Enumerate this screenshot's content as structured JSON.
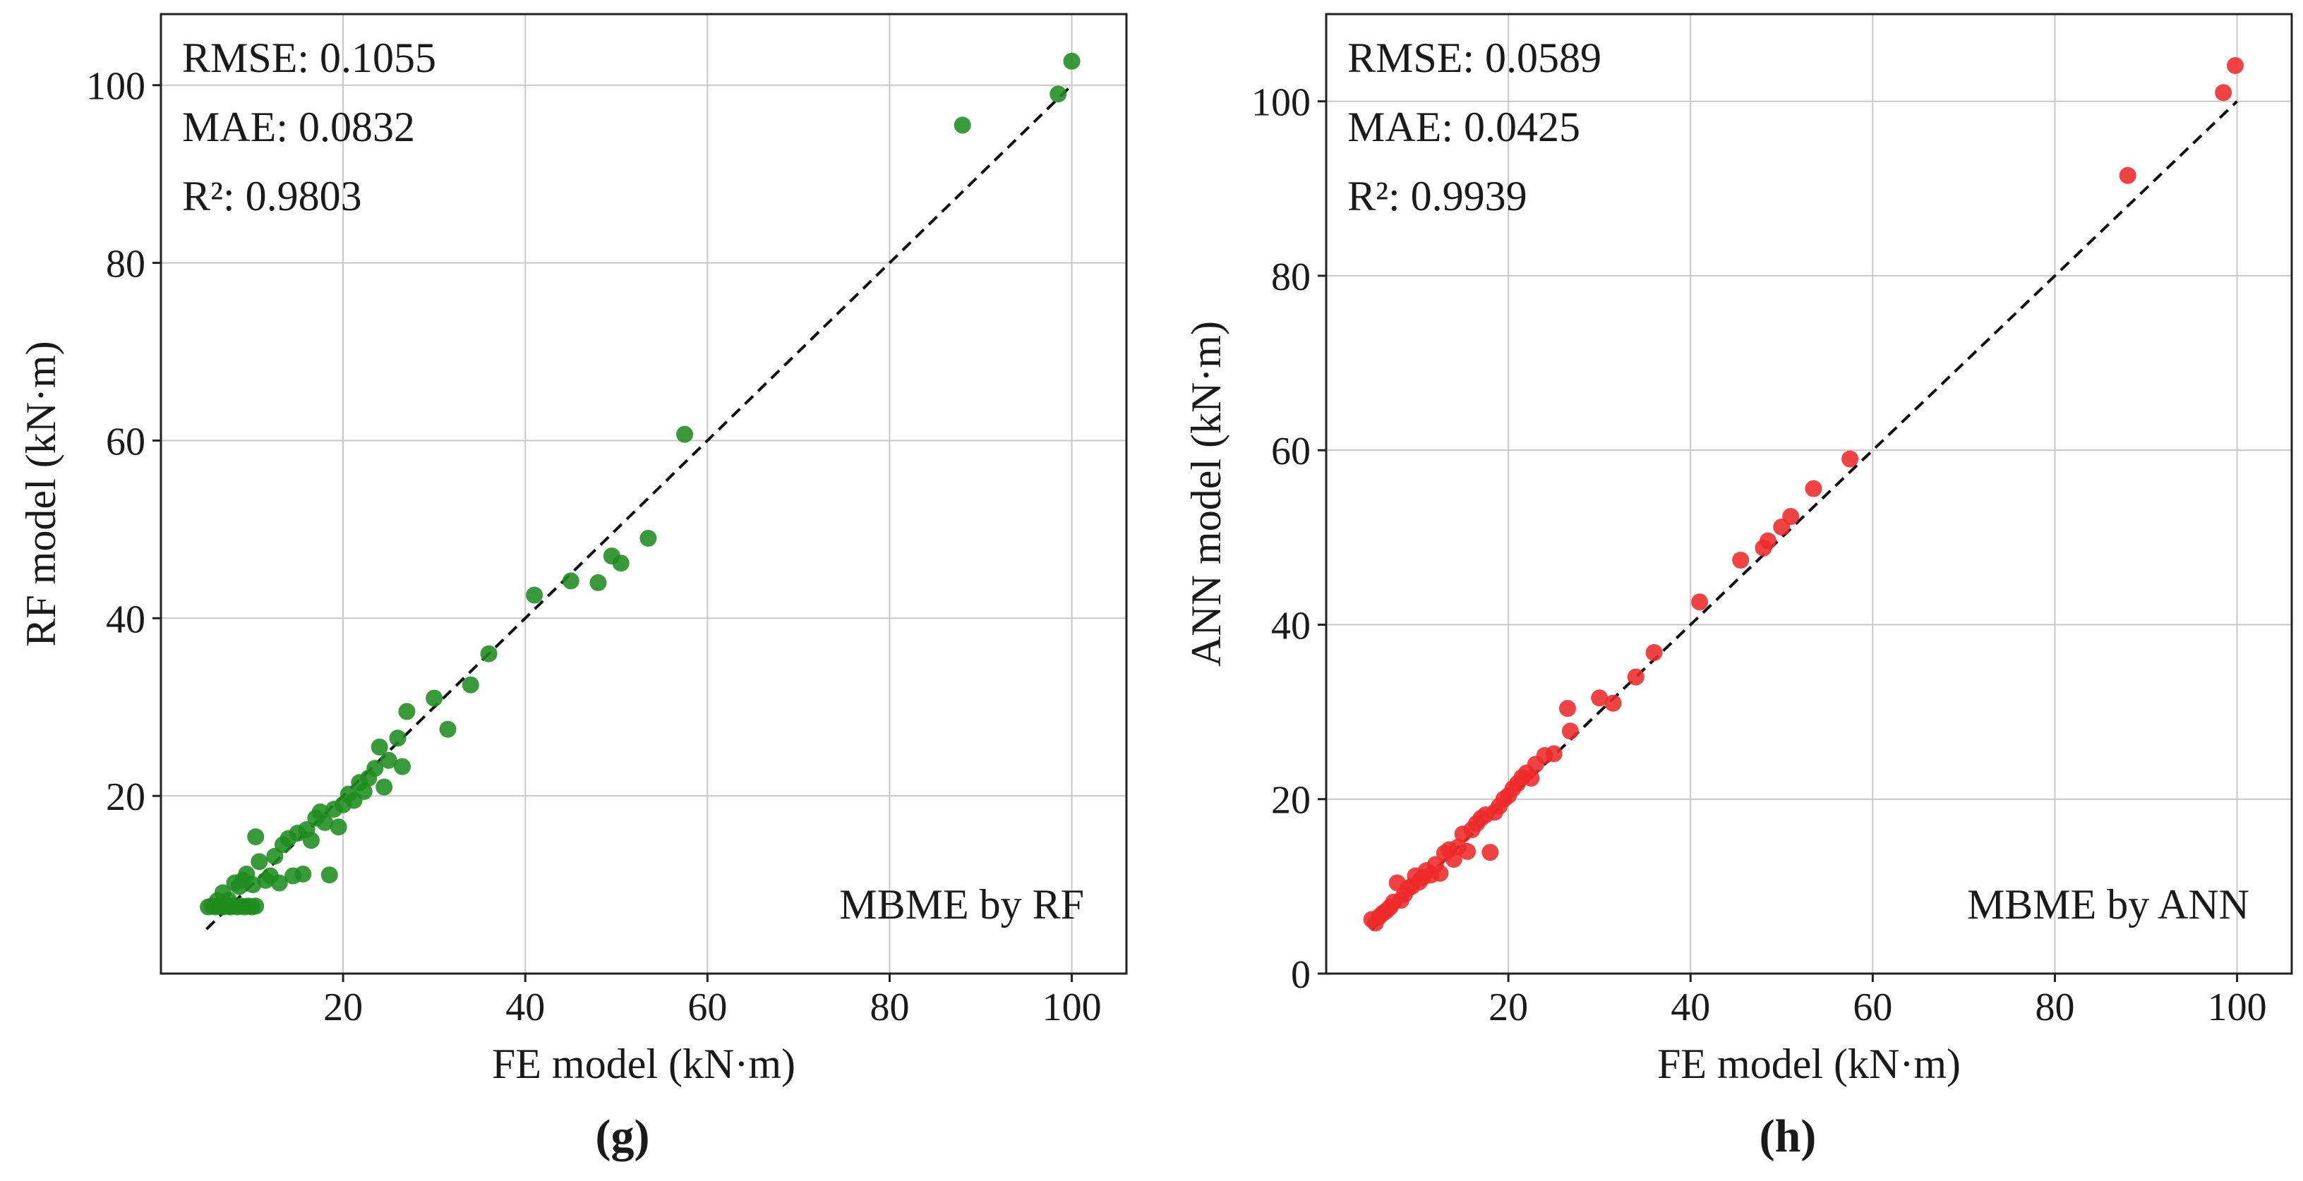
{
  "chart_data": [
    {
      "type": "scatter",
      "panel_label": "(g)",
      "xlabel": "FE model (kN·m)",
      "ylabel": "RF model (kN·m)",
      "annotation": "MBME by RF",
      "stats": [
        "RMSE: 0.1055",
        "MAE: 0.0832",
        "R²: 0.9803"
      ],
      "xlim": [
        0,
        106
      ],
      "ylim": [
        0,
        108
      ],
      "xticks": [
        20,
        40,
        60,
        80,
        100
      ],
      "yticks": [
        20,
        40,
        60,
        80,
        100
      ],
      "color": "#1e8c1e",
      "reference_line": [
        [
          5,
          5
        ],
        [
          100,
          100
        ]
      ],
      "points": [
        [
          5.2,
          7.5
        ],
        [
          5.6,
          7.6
        ],
        [
          6.0,
          7.5
        ],
        [
          6.4,
          7.6
        ],
        [
          6.8,
          7.5
        ],
        [
          7.2,
          7.6
        ],
        [
          7.6,
          7.5
        ],
        [
          8.0,
          7.6
        ],
        [
          8.4,
          7.5
        ],
        [
          8.8,
          7.6
        ],
        [
          9.2,
          7.5
        ],
        [
          9.6,
          7.6
        ],
        [
          10.0,
          7.5
        ],
        [
          10.4,
          7.6
        ],
        [
          6.2,
          8.2
        ],
        [
          6.8,
          9.1
        ],
        [
          7.4,
          8.3
        ],
        [
          8.1,
          10.2
        ],
        [
          8.6,
          9.8
        ],
        [
          9.0,
          10.5
        ],
        [
          9.4,
          11.2
        ],
        [
          10.1,
          10.0
        ],
        [
          10.4,
          15.4
        ],
        [
          10.8,
          12.6
        ],
        [
          11.5,
          10.5
        ],
        [
          12.0,
          11.0
        ],
        [
          12.5,
          13.2
        ],
        [
          13.0,
          10.2
        ],
        [
          13.4,
          14.5
        ],
        [
          14.0,
          15.2
        ],
        [
          14.5,
          11.0
        ],
        [
          15.0,
          15.8
        ],
        [
          15.6,
          11.2
        ],
        [
          16.0,
          16.2
        ],
        [
          16.5,
          15.0
        ],
        [
          17.0,
          17.5
        ],
        [
          17.5,
          18.2
        ],
        [
          18.0,
          17.0
        ],
        [
          18.5,
          11.1
        ],
        [
          19.0,
          18.5
        ],
        [
          19.5,
          16.5
        ],
        [
          20.0,
          19.0
        ],
        [
          20.6,
          20.2
        ],
        [
          21.2,
          19.5
        ],
        [
          21.8,
          21.5
        ],
        [
          22.3,
          20.5
        ],
        [
          22.8,
          22.0
        ],
        [
          23.5,
          23.1
        ],
        [
          24.0,
          25.5
        ],
        [
          24.5,
          21.0
        ],
        [
          25.0,
          24.0
        ],
        [
          26.0,
          26.5
        ],
        [
          26.5,
          23.3
        ],
        [
          27.0,
          29.5
        ],
        [
          30.0,
          31.0
        ],
        [
          31.5,
          27.5
        ],
        [
          34.0,
          32.5
        ],
        [
          36.0,
          36.0
        ],
        [
          41.0,
          42.6
        ],
        [
          45.0,
          44.2
        ],
        [
          48.0,
          44.0
        ],
        [
          49.5,
          47.0
        ],
        [
          50.5,
          46.2
        ],
        [
          53.5,
          49.0
        ],
        [
          57.5,
          60.7
        ],
        [
          88.0,
          95.5
        ],
        [
          98.5,
          99.0
        ],
        [
          100.0,
          102.7
        ]
      ]
    },
    {
      "type": "scatter",
      "panel_label": "(h)",
      "xlabel": "FE model (kN·m)",
      "ylabel": "ANN model (kN·m)",
      "annotation": "MBME by ANN",
      "stats": [
        "RMSE: 0.0589",
        "MAE: 0.0425",
        "R²: 0.9939"
      ],
      "xlim": [
        0,
        106
      ],
      "ylim": [
        0,
        110
      ],
      "xticks": [
        20,
        40,
        60,
        80,
        100
      ],
      "yticks": [
        0,
        20,
        40,
        60,
        80,
        100
      ],
      "color": "#ee2a2a",
      "reference_line": [
        [
          5,
          5
        ],
        [
          100,
          100
        ]
      ],
      "points": [
        [
          5.0,
          6.2
        ],
        [
          5.4,
          5.8
        ],
        [
          5.8,
          6.5
        ],
        [
          6.2,
          6.9
        ],
        [
          6.6,
          7.2
        ],
        [
          7.0,
          7.6
        ],
        [
          7.4,
          8.2
        ],
        [
          7.8,
          10.4
        ],
        [
          8.2,
          8.4
        ],
        [
          8.6,
          9.1
        ],
        [
          9.0,
          9.8
        ],
        [
          9.4,
          10.0
        ],
        [
          9.8,
          11.2
        ],
        [
          10.2,
          10.5
        ],
        [
          10.6,
          11.0
        ],
        [
          11.0,
          11.8
        ],
        [
          11.5,
          11.3
        ],
        [
          12.0,
          12.5
        ],
        [
          12.5,
          11.5
        ],
        [
          13.0,
          13.8
        ],
        [
          13.5,
          14.2
        ],
        [
          14.0,
          13.1
        ],
        [
          14.5,
          14.5
        ],
        [
          15.0,
          16.0
        ],
        [
          15.5,
          14.0
        ],
        [
          16.0,
          16.5
        ],
        [
          16.5,
          17.2
        ],
        [
          17.0,
          17.8
        ],
        [
          17.5,
          18.2
        ],
        [
          18.0,
          13.9
        ],
        [
          18.5,
          18.5
        ],
        [
          19.0,
          19.2
        ],
        [
          19.5,
          20.0
        ],
        [
          20.0,
          20.4
        ],
        [
          20.5,
          21.2
        ],
        [
          21.0,
          21.8
        ],
        [
          21.5,
          22.5
        ],
        [
          22.0,
          23.0
        ],
        [
          22.5,
          22.4
        ],
        [
          23.0,
          24.0
        ],
        [
          24.0,
          25.0
        ],
        [
          25.0,
          25.2
        ],
        [
          26.5,
          30.4
        ],
        [
          26.8,
          27.8
        ],
        [
          30.0,
          31.6
        ],
        [
          31.5,
          31.0
        ],
        [
          34.0,
          34.0
        ],
        [
          36.0,
          36.8
        ],
        [
          41.0,
          42.6
        ],
        [
          45.5,
          47.4
        ],
        [
          48.0,
          48.8
        ],
        [
          48.5,
          49.6
        ],
        [
          50.0,
          51.2
        ],
        [
          51.0,
          52.4
        ],
        [
          53.5,
          55.6
        ],
        [
          57.5,
          59.0
        ],
        [
          88.0,
          91.5
        ],
        [
          98.5,
          101.0
        ],
        [
          99.8,
          104.1
        ]
      ]
    }
  ]
}
